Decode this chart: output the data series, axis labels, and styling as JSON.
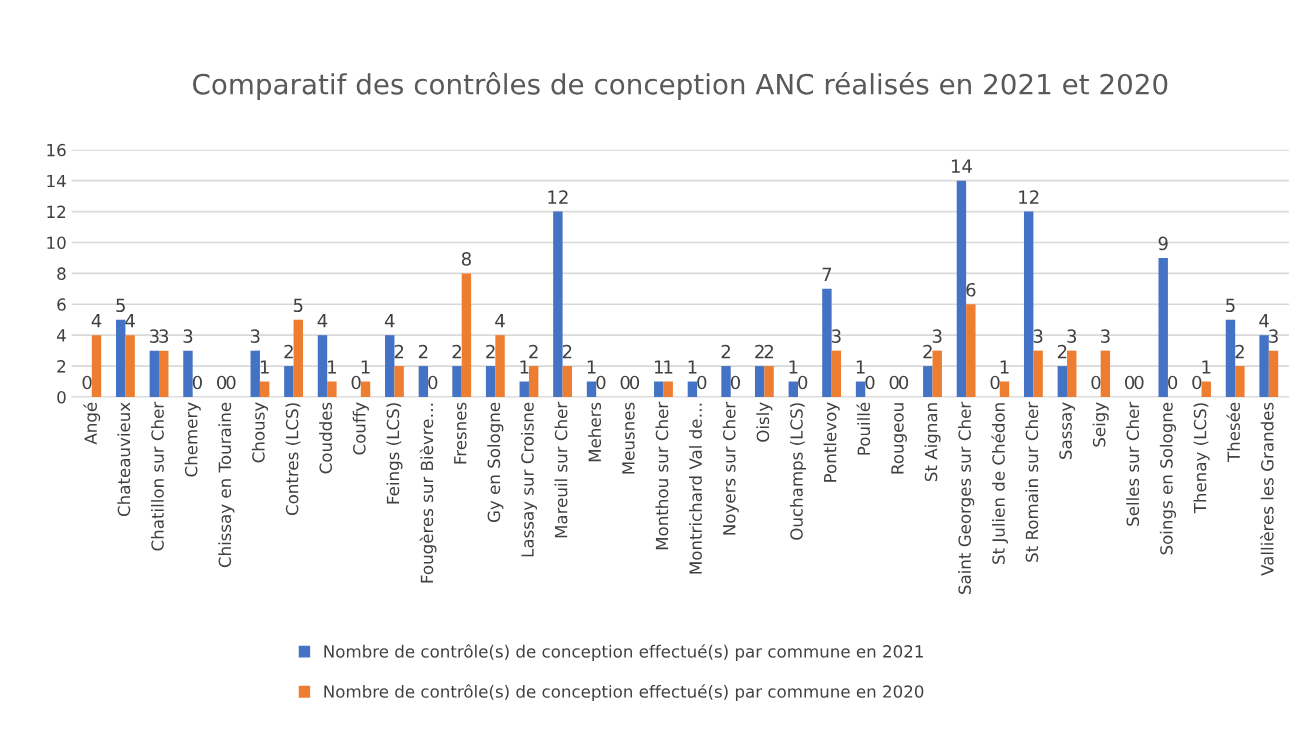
{
  "chart_data": {
    "type": "bar",
    "title": "Comparatif des contrôles de conception ANC réalisés en 2021 et 2020",
    "categories": [
      "Angé",
      "Chateauvieux",
      "Chatillon sur Cher",
      "Chemery",
      "Chissay en Touraine",
      "Chousy",
      "Contres (LCS)",
      "Couddes",
      "Couffy",
      "Feings (LCS)",
      "Fougères sur Bièvre…",
      "Fresnes",
      "Gy en Sologne",
      "Lassay sur Croisne",
      "Mareuil sur Cher",
      "Mehers",
      "Meusnes",
      "Monthou sur Cher",
      "Montrichard Val de…",
      "Noyers sur Cher",
      "Oisly",
      "Ouchamps (LCS)",
      "Pontlevoy",
      "Pouillé",
      "Rougeou",
      "St Aignan",
      "Saint Georges sur Cher",
      "St Julien de Chédon",
      "St Romain sur Cher",
      "Sassay",
      "Seigy",
      "Selles sur Cher",
      "Soings en Sologne",
      "Thenay (LCS)",
      "Thesée",
      "Vallières les Grandes"
    ],
    "series": [
      {
        "name": "Nombre de contrôle(s) de conception effectué(s) par commune en 2021",
        "color": "#4472c4",
        "values": [
          0,
          5,
          3,
          3,
          0,
          3,
          2,
          4,
          0,
          4,
          2,
          2,
          2,
          1,
          12,
          1,
          0,
          1,
          1,
          2,
          2,
          1,
          7,
          1,
          0,
          2,
          14,
          0,
          12,
          2,
          0,
          0,
          9,
          0,
          5,
          4
        ]
      },
      {
        "name": "Nombre de contrôle(s) de conception effectué(s) par commune en 2020",
        "color": "#ed7d31",
        "values": [
          4,
          4,
          3,
          0,
          0,
          1,
          5,
          1,
          1,
          2,
          0,
          8,
          4,
          2,
          2,
          0,
          0,
          1,
          0,
          0,
          2,
          0,
          3,
          0,
          0,
          3,
          6,
          1,
          3,
          3,
          3,
          0,
          0,
          1,
          2,
          3
        ]
      }
    ],
    "ylim": [
      0,
      16
    ],
    "yticks": [
      0,
      2,
      4,
      6,
      8,
      10,
      12,
      14,
      16
    ],
    "grid": "y",
    "legend": "bottom",
    "data_labels": true
  }
}
